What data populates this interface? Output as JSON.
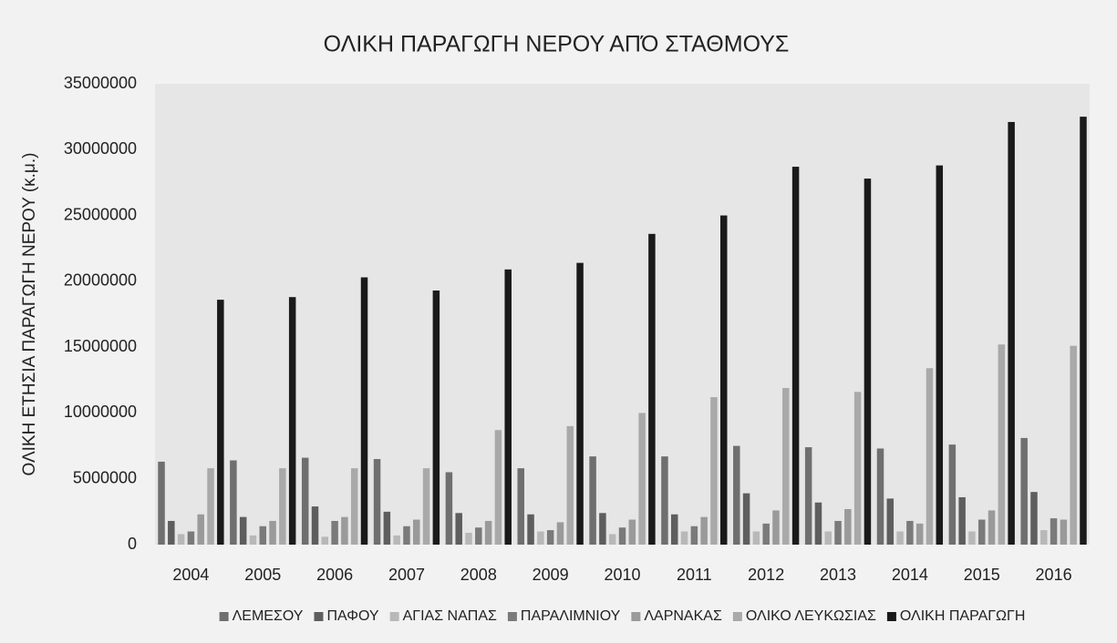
{
  "chart_data": {
    "type": "bar",
    "title": "ΟΛΙΚΗ ΠΑΡΑΓΩΓΗ ΝΕΡΟΥ ΑΠΌ ΣΤΑΘΜΟΥΣ",
    "y_label": "ΟΛΙΚΗ ΕΤΗΣΙΑ ΠΑΡΑΓΩΓΗ ΝΕΡΟΥ (κ.μ.)",
    "categories": [
      "2004",
      "2005",
      "2006",
      "2007",
      "2008",
      "2009",
      "2010",
      "2011",
      "2012",
      "2013",
      "2014",
      "2015",
      "2016"
    ],
    "series": [
      {
        "name": "ΛΕΜΕΣΟΥ",
        "color": "#6f6f6f",
        "values": [
          6300000,
          6400000,
          6600000,
          6500000,
          5500000,
          5800000,
          6700000,
          6700000,
          7500000,
          7400000,
          7300000,
          7600000,
          8100000
        ]
      },
      {
        "name": "ΠΑΦΟΥ",
        "color": "#5e5e5e",
        "values": [
          1800000,
          2100000,
          2900000,
          2500000,
          2400000,
          2300000,
          2400000,
          2300000,
          3900000,
          3200000,
          3500000,
          3600000,
          4000000
        ]
      },
      {
        "name": "ΑΓΙΑΣ ΝΑΠΑΣ",
        "color": "#b8b8b8",
        "values": [
          800000,
          700000,
          600000,
          700000,
          900000,
          1000000,
          800000,
          1000000,
          1000000,
          1000000,
          1000000,
          1000000,
          1100000
        ]
      },
      {
        "name": "ΠΑΡΑΛΙΜΝΙΟΥ",
        "color": "#7a7a7a",
        "values": [
          1000000,
          1400000,
          1800000,
          1400000,
          1300000,
          1100000,
          1300000,
          1400000,
          1600000,
          1800000,
          1800000,
          1900000,
          2000000
        ]
      },
      {
        "name": "ΛΑΡΝΑΚΑΣ",
        "color": "#9a9a9a",
        "values": [
          2300000,
          1800000,
          2100000,
          1900000,
          1800000,
          1700000,
          1900000,
          2100000,
          2600000,
          2700000,
          1600000,
          2600000,
          1900000
        ]
      },
      {
        "name": "ΟΛΙΚΟ ΛΕΥΚΩΣΙΑΣ",
        "color": "#a9a9a9",
        "values": [
          5800000,
          5800000,
          5800000,
          5800000,
          8700000,
          9000000,
          10000000,
          11200000,
          11900000,
          11600000,
          13400000,
          15200000,
          15100000
        ]
      },
      {
        "name": "ΟΛΙΚΗ ΠΑΡΑΓΩΓΗ",
        "color": "#1a1a1a",
        "values": [
          18600000,
          18800000,
          20300000,
          19300000,
          20900000,
          21400000,
          23600000,
          25000000,
          28700000,
          27800000,
          28800000,
          32100000,
          32500000
        ]
      }
    ],
    "ylim": [
      0,
      35000000
    ],
    "yticks": [
      0,
      5000000,
      10000000,
      15000000,
      20000000,
      25000000,
      30000000,
      35000000
    ],
    "grid": false,
    "legend": "bottom"
  }
}
